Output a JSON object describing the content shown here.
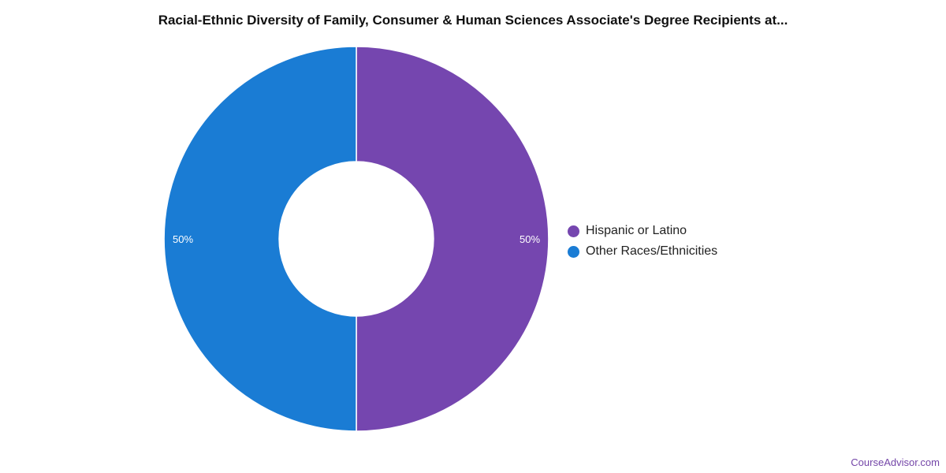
{
  "chart_data": {
    "type": "pie",
    "title": "Racial-Ethnic Diversity of Family, Consumer & Human Sciences Associate's Degree Recipients at...",
    "categories": [
      "Hispanic or Latino",
      "Other Races/Ethnicities"
    ],
    "values": [
      50,
      50
    ],
    "labels": [
      "50%",
      "50%"
    ],
    "colors": [
      "#7546af",
      "#1a7cd4"
    ],
    "donut": true,
    "legend_position": "right"
  },
  "footer": {
    "source": "CourseAdvisor.com"
  }
}
